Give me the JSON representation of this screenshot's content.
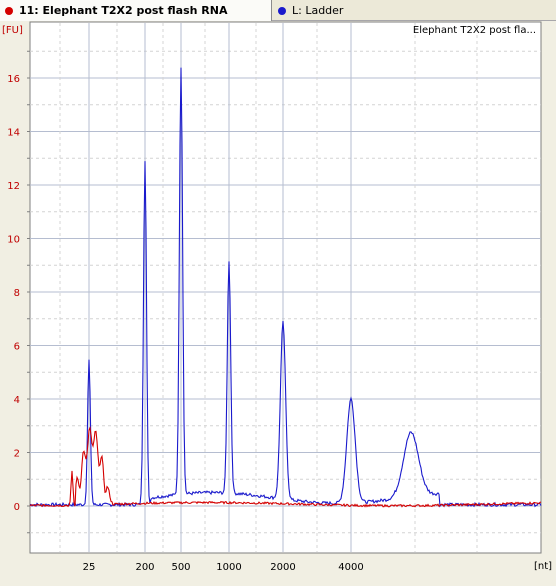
{
  "tabs": [
    {
      "label": "11: Elephant T2X2 post flash RNA",
      "color": "#d40000",
      "active": true
    },
    {
      "label": "L: Ladder",
      "color": "#1a1acc",
      "active": false
    }
  ],
  "chart_data": {
    "type": "line",
    "title": "Elephant T2X2 post fla...",
    "ylabel": "[FU]",
    "xlabel": "[nt]",
    "ylim": [
      -1.7,
      18
    ],
    "yticks": [
      0,
      2,
      4,
      6,
      8,
      10,
      12,
      14,
      16
    ],
    "xticks": [
      25,
      200,
      500,
      1000,
      2000,
      4000
    ],
    "grid": true,
    "series": [
      {
        "name": "11: Elephant T2X2 post flash RNA",
        "color": "#d40000"
      },
      {
        "name": "L: Ladder",
        "color": "#1a1acc"
      }
    ]
  }
}
